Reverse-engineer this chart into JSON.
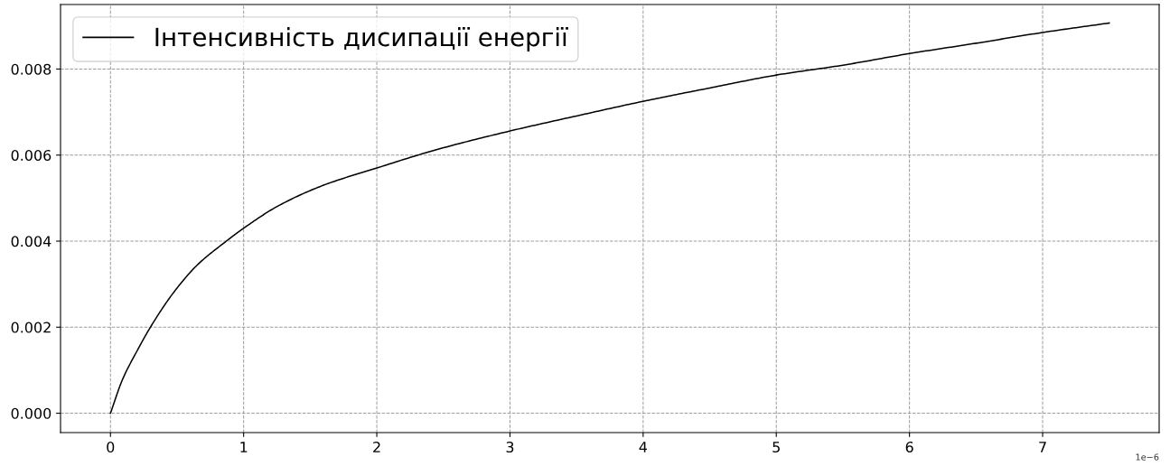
{
  "chart_data": {
    "type": "line",
    "x": [
      0,
      0.09,
      0.2,
      0.3,
      0.48,
      0.65,
      0.87,
      1.0,
      1.26,
      1.6,
      2.0,
      2.43,
      3.0,
      3.5,
      4.0,
      4.5,
      5.0,
      5.5,
      6.0,
      6.5,
      7.0,
      7.5
    ],
    "series": [
      {
        "name": "Інтенсивність дисипації енергії",
        "color": "#000000",
        "values": [
          0,
          0.00078,
          0.00145,
          0.002,
          0.00283,
          0.00344,
          0.004,
          0.0043,
          0.00482,
          0.0053,
          0.0057,
          0.00611,
          0.00656,
          0.00691,
          0.00725,
          0.00756,
          0.00786,
          0.00809,
          0.00836,
          0.0086,
          0.00885,
          0.00907
        ]
      }
    ],
    "xlim": [
      -0.375,
      7.875
    ],
    "xticks": [
      0,
      1,
      2,
      3,
      4,
      5,
      6,
      7
    ],
    "ylim": [
      -0.00045,
      0.0095
    ],
    "yticks": [
      {
        "value": 0,
        "label": "0.000"
      },
      {
        "value": 0.002,
        "label": "0.002"
      },
      {
        "value": 0.004,
        "label": "0.004"
      },
      {
        "value": 0.006,
        "label": "0.006"
      },
      {
        "value": 0.008,
        "label": "0.008"
      }
    ],
    "annotations": [
      "1e−6"
    ],
    "grid": true,
    "legend": "top left"
  }
}
